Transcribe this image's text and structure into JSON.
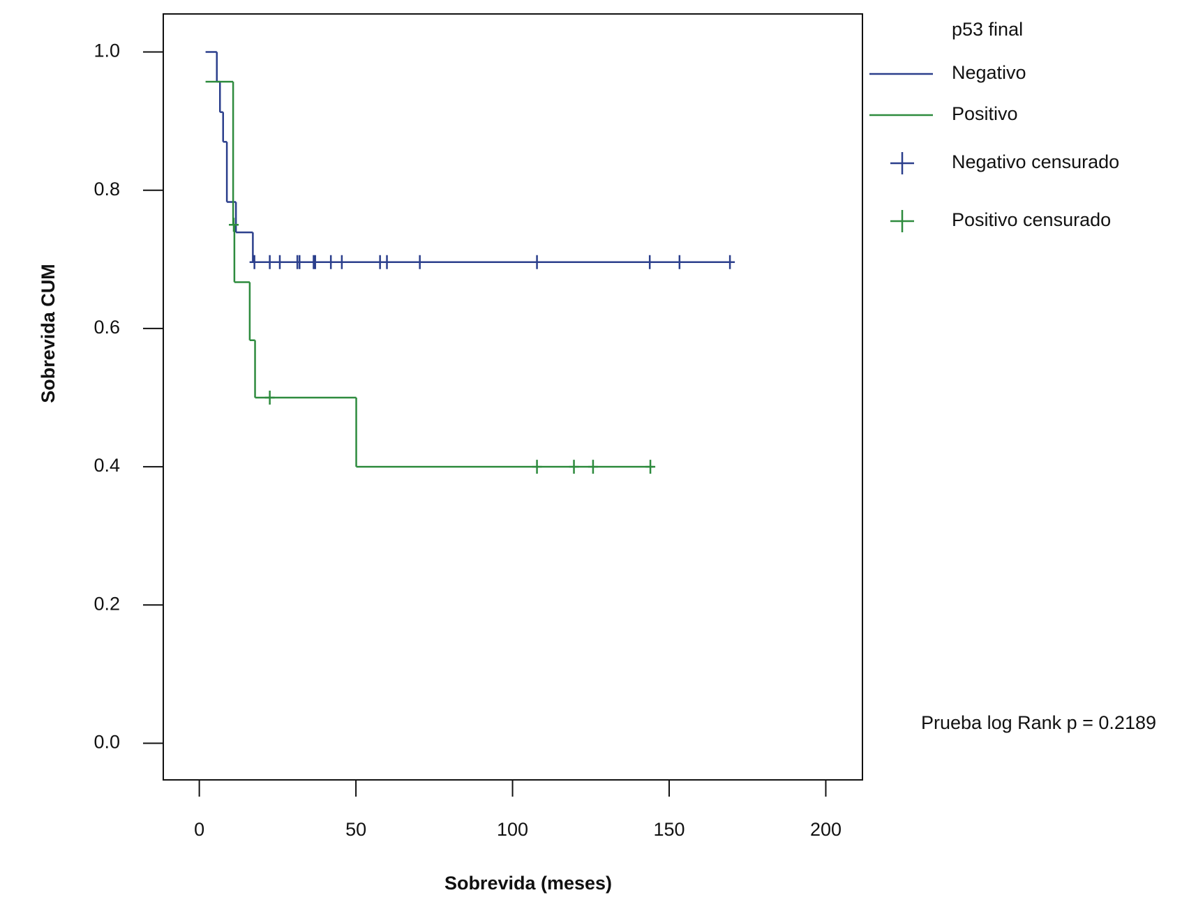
{
  "chart_data": {
    "type": "kaplan-meier",
    "x_label": "Sobrevida (meses)",
    "y_label": "Sobrevida CUM",
    "legend_title": "p53 final",
    "annotation": "Prueba log Rank p = 0.2189",
    "xlim": [
      -11.5,
      211.7
    ],
    "ylim": [
      -0.053,
      1.055
    ],
    "xticks": [
      0,
      50,
      100,
      150,
      200
    ],
    "yticks": [
      {
        "value": 0,
        "label": "0.0"
      },
      0.2,
      0.4,
      0.6,
      0.8,
      {
        "value": 1,
        "label": "1.0"
      }
    ],
    "series": [
      {
        "name": "Negativo",
        "color": "#2b3f8c",
        "x": [
          2,
          5.6,
          6.6,
          7.6,
          8.8,
          11.7,
          17.1,
          170
        ],
        "values": [
          1.0,
          0.957,
          0.913,
          0.87,
          0.783,
          0.739,
          0.696,
          0.696
        ]
      },
      {
        "name": "Positivo",
        "color": "#2e8b3e",
        "x": [
          2,
          10.8,
          11.2,
          16.1,
          17.8,
          50.1,
          145
        ],
        "values": [
          0.957,
          0.75,
          0.667,
          0.583,
          0.5,
          0.4,
          0.4
        ]
      }
    ],
    "censored": [
      {
        "name": "Negativo censurado",
        "color": "#2b3f8c",
        "x": [
          17.6,
          22.5,
          25.7,
          31.3,
          32,
          36.5,
          37,
          42,
          45.5,
          57.7,
          59.9,
          70.4,
          107.8,
          143.8,
          153.3,
          169.4
        ],
        "values": [
          0.696,
          0.696,
          0.696,
          0.696,
          0.696,
          0.696,
          0.696,
          0.696,
          0.696,
          0.696,
          0.696,
          0.696,
          0.696,
          0.696,
          0.696,
          0.696
        ]
      },
      {
        "name": "Positivo censurado",
        "color": "#2e8b3e",
        "x": [
          11,
          22.5,
          107.8,
          119.6,
          125.7,
          144
        ],
        "values": [
          0.75,
          0.5,
          0.4,
          0.4,
          0.4,
          0.4
        ]
      }
    ]
  }
}
